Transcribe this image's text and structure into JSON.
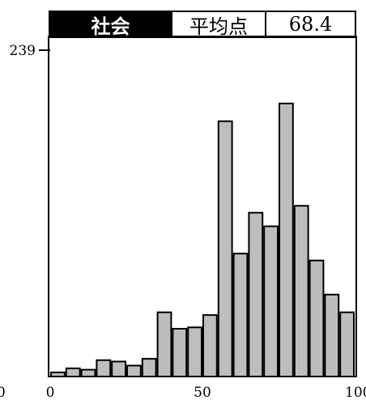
{
  "header": {
    "subject": "社会",
    "average_label": "平均点",
    "average_value": "68.4"
  },
  "chart_data": {
    "type": "bar",
    "title": "",
    "xlabel": "",
    "ylabel": "",
    "x_ticks": [
      "0",
      "50",
      "100"
    ],
    "y_ticks": [
      "0",
      "239"
    ],
    "xlim": [
      0,
      100
    ],
    "ylim": [
      0,
      239
    ],
    "bin_width": 5,
    "bin_starts": [
      0,
      5,
      10,
      15,
      20,
      25,
      30,
      35,
      40,
      45,
      50,
      55,
      60,
      65,
      70,
      75,
      80,
      85,
      90,
      95
    ],
    "values": [
      3,
      6,
      5,
      12,
      11,
      8,
      13,
      47,
      35,
      36,
      45,
      187,
      90,
      120,
      110,
      200,
      125,
      85,
      60,
      47
    ],
    "bar_color": "#bdbdbd",
    "grid": false,
    "legend": "none"
  }
}
